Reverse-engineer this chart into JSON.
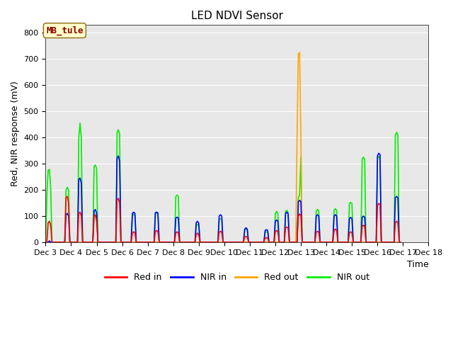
{
  "title": "LED NDVI Sensor",
  "ylabel": "Red, NIR response (mV)",
  "xlabel": "Time",
  "annotation": "MB_tule",
  "ylim": [
    0,
    830
  ],
  "plot_bgcolor": "#e8e8e8",
  "fig_bgcolor": "#ffffff",
  "colors": {
    "red_in": "#ff0000",
    "nir_in": "#0000ff",
    "red_out": "#ffa500",
    "nir_out": "#00ee00"
  },
  "x_ticks": [
    3,
    4,
    5,
    6,
    7,
    8,
    9,
    10,
    11,
    12,
    13,
    14,
    15,
    16,
    17,
    18
  ],
  "x_tick_labels": [
    "Dec 3",
    "Dec 4",
    "Dec 5",
    "Dec 6",
    "Dec 7",
    "Dec 8",
    "Dec 9",
    "Dec 10",
    "Dec 11",
    "Dec 12",
    "Dec 13",
    "Dec 14",
    "Dec 15",
    "Dec 16",
    "Dec 17",
    "Dec 18"
  ],
  "yticks": [
    0,
    100,
    200,
    300,
    400,
    500,
    600,
    700,
    800
  ],
  "red_in": [
    [
      3.0,
      0
    ],
    [
      3.05,
      0
    ],
    [
      3.1,
      75
    ],
    [
      3.15,
      80
    ],
    [
      3.2,
      65
    ],
    [
      3.25,
      0
    ],
    [
      3.3,
      0
    ],
    [
      3.7,
      0
    ],
    [
      3.75,
      0
    ],
    [
      3.8,
      170
    ],
    [
      3.85,
      175
    ],
    [
      3.9,
      150
    ],
    [
      3.95,
      0
    ],
    [
      4.0,
      0
    ],
    [
      4.2,
      0
    ],
    [
      4.25,
      0
    ],
    [
      4.3,
      110
    ],
    [
      4.35,
      115
    ],
    [
      4.4,
      100
    ],
    [
      4.45,
      0
    ],
    [
      4.5,
      0
    ],
    [
      4.8,
      0
    ],
    [
      4.85,
      0
    ],
    [
      4.9,
      100
    ],
    [
      4.95,
      105
    ],
    [
      5.0,
      80
    ],
    [
      5.05,
      0
    ],
    [
      5.1,
      0
    ],
    [
      5.7,
      0
    ],
    [
      5.75,
      0
    ],
    [
      5.8,
      160
    ],
    [
      5.85,
      168
    ],
    [
      5.9,
      150
    ],
    [
      5.95,
      0
    ],
    [
      6.0,
      0
    ],
    [
      6.3,
      0
    ],
    [
      6.35,
      0
    ],
    [
      6.4,
      35
    ],
    [
      6.45,
      40
    ],
    [
      6.5,
      35
    ],
    [
      6.55,
      0
    ],
    [
      6.6,
      0
    ],
    [
      7.2,
      0
    ],
    [
      7.25,
      0
    ],
    [
      7.3,
      40
    ],
    [
      7.35,
      45
    ],
    [
      7.4,
      40
    ],
    [
      7.45,
      0
    ],
    [
      7.5,
      0
    ],
    [
      8.0,
      0
    ],
    [
      8.05,
      0
    ],
    [
      8.1,
      35
    ],
    [
      8.15,
      40
    ],
    [
      8.2,
      35
    ],
    [
      8.25,
      0
    ],
    [
      8.3,
      0
    ],
    [
      8.8,
      0
    ],
    [
      8.85,
      0
    ],
    [
      8.9,
      30
    ],
    [
      8.95,
      35
    ],
    [
      9.0,
      28
    ],
    [
      9.05,
      0
    ],
    [
      9.1,
      0
    ],
    [
      9.7,
      0
    ],
    [
      9.75,
      0
    ],
    [
      9.8,
      38
    ],
    [
      9.85,
      42
    ],
    [
      9.9,
      38
    ],
    [
      9.95,
      0
    ],
    [
      10.0,
      0
    ],
    [
      10.7,
      0
    ],
    [
      10.75,
      0
    ],
    [
      10.8,
      20
    ],
    [
      10.85,
      22
    ],
    [
      10.9,
      20
    ],
    [
      10.95,
      0
    ],
    [
      11.0,
      0
    ],
    [
      11.5,
      0
    ],
    [
      11.55,
      0
    ],
    [
      11.6,
      15
    ],
    [
      11.65,
      18
    ],
    [
      11.7,
      15
    ],
    [
      11.75,
      0
    ],
    [
      11.8,
      0
    ],
    [
      11.9,
      0
    ],
    [
      11.95,
      0
    ],
    [
      12.0,
      40
    ],
    [
      12.05,
      45
    ],
    [
      12.1,
      40
    ],
    [
      12.15,
      0
    ],
    [
      12.2,
      0
    ],
    [
      12.3,
      0
    ],
    [
      12.35,
      0
    ],
    [
      12.4,
      55
    ],
    [
      12.45,
      58
    ],
    [
      12.5,
      55
    ],
    [
      12.55,
      0
    ],
    [
      12.6,
      0
    ],
    [
      12.8,
      0
    ],
    [
      12.85,
      0
    ],
    [
      12.9,
      100
    ],
    [
      12.95,
      108
    ],
    [
      13.0,
      100
    ],
    [
      13.05,
      0
    ],
    [
      13.1,
      0
    ],
    [
      13.5,
      0
    ],
    [
      13.55,
      0
    ],
    [
      13.6,
      38
    ],
    [
      13.65,
      42
    ],
    [
      13.7,
      38
    ],
    [
      13.75,
      0
    ],
    [
      13.8,
      0
    ],
    [
      14.2,
      0
    ],
    [
      14.25,
      0
    ],
    [
      14.3,
      45
    ],
    [
      14.35,
      50
    ],
    [
      14.4,
      45
    ],
    [
      14.45,
      0
    ],
    [
      14.5,
      0
    ],
    [
      14.8,
      0
    ],
    [
      14.85,
      0
    ],
    [
      14.9,
      35
    ],
    [
      14.95,
      40
    ],
    [
      15.0,
      35
    ],
    [
      15.05,
      0
    ],
    [
      15.1,
      0
    ],
    [
      15.3,
      0
    ],
    [
      15.35,
      0
    ],
    [
      15.4,
      60
    ],
    [
      15.45,
      65
    ],
    [
      15.5,
      60
    ],
    [
      15.55,
      0
    ],
    [
      15.6,
      0
    ],
    [
      15.9,
      0
    ],
    [
      15.95,
      0
    ],
    [
      16.0,
      140
    ],
    [
      16.05,
      148
    ],
    [
      16.1,
      145
    ],
    [
      16.15,
      0
    ],
    [
      16.2,
      0
    ],
    [
      16.6,
      0
    ],
    [
      16.65,
      0
    ],
    [
      16.7,
      75
    ],
    [
      16.75,
      80
    ],
    [
      16.8,
      75
    ],
    [
      16.85,
      0
    ],
    [
      16.9,
      0
    ]
  ],
  "nir_in": [
    [
      3.0,
      0
    ],
    [
      3.05,
      0
    ],
    [
      3.1,
      0
    ],
    [
      3.15,
      5
    ],
    [
      3.2,
      0
    ],
    [
      3.25,
      0
    ],
    [
      3.3,
      0
    ],
    [
      3.7,
      0
    ],
    [
      3.75,
      0
    ],
    [
      3.8,
      105
    ],
    [
      3.85,
      110
    ],
    [
      3.9,
      100
    ],
    [
      3.95,
      0
    ],
    [
      4.0,
      0
    ],
    [
      4.2,
      0
    ],
    [
      4.25,
      0
    ],
    [
      4.3,
      240
    ],
    [
      4.35,
      245
    ],
    [
      4.4,
      225
    ],
    [
      4.45,
      0
    ],
    [
      4.5,
      0
    ],
    [
      4.8,
      0
    ],
    [
      4.85,
      0
    ],
    [
      4.9,
      120
    ],
    [
      4.95,
      125
    ],
    [
      5.0,
      110
    ],
    [
      5.05,
      0
    ],
    [
      5.1,
      0
    ],
    [
      5.7,
      0
    ],
    [
      5.75,
      0
    ],
    [
      5.8,
      320
    ],
    [
      5.85,
      330
    ],
    [
      5.9,
      310
    ],
    [
      5.95,
      0
    ],
    [
      6.0,
      0
    ],
    [
      6.3,
      0
    ],
    [
      6.35,
      0
    ],
    [
      6.4,
      110
    ],
    [
      6.45,
      115
    ],
    [
      6.5,
      110
    ],
    [
      6.55,
      0
    ],
    [
      6.6,
      0
    ],
    [
      7.2,
      0
    ],
    [
      7.25,
      0
    ],
    [
      7.3,
      113
    ],
    [
      7.35,
      115
    ],
    [
      7.4,
      112
    ],
    [
      7.45,
      0
    ],
    [
      7.5,
      0
    ],
    [
      8.0,
      0
    ],
    [
      8.05,
      0
    ],
    [
      8.1,
      92
    ],
    [
      8.15,
      96
    ],
    [
      8.2,
      92
    ],
    [
      8.25,
      0
    ],
    [
      8.3,
      0
    ],
    [
      8.8,
      0
    ],
    [
      8.85,
      0
    ],
    [
      8.9,
      75
    ],
    [
      8.95,
      80
    ],
    [
      9.0,
      72
    ],
    [
      9.05,
      0
    ],
    [
      9.1,
      0
    ],
    [
      9.7,
      0
    ],
    [
      9.75,
      0
    ],
    [
      9.8,
      100
    ],
    [
      9.85,
      105
    ],
    [
      9.9,
      100
    ],
    [
      9.95,
      0
    ],
    [
      10.0,
      0
    ],
    [
      10.7,
      0
    ],
    [
      10.75,
      0
    ],
    [
      10.8,
      50
    ],
    [
      10.85,
      55
    ],
    [
      10.9,
      50
    ],
    [
      10.95,
      0
    ],
    [
      11.0,
      0
    ],
    [
      11.5,
      0
    ],
    [
      11.55,
      0
    ],
    [
      11.6,
      45
    ],
    [
      11.65,
      48
    ],
    [
      11.7,
      45
    ],
    [
      11.75,
      0
    ],
    [
      11.8,
      0
    ],
    [
      11.9,
      0
    ],
    [
      11.95,
      0
    ],
    [
      12.0,
      80
    ],
    [
      12.05,
      85
    ],
    [
      12.1,
      80
    ],
    [
      12.15,
      0
    ],
    [
      12.2,
      0
    ],
    [
      12.3,
      0
    ],
    [
      12.35,
      0
    ],
    [
      12.4,
      110
    ],
    [
      12.45,
      115
    ],
    [
      12.5,
      108
    ],
    [
      12.55,
      0
    ],
    [
      12.6,
      0
    ],
    [
      12.8,
      0
    ],
    [
      12.85,
      0
    ],
    [
      12.9,
      155
    ],
    [
      12.95,
      160
    ],
    [
      13.0,
      155
    ],
    [
      13.05,
      0
    ],
    [
      13.1,
      0
    ],
    [
      13.5,
      0
    ],
    [
      13.55,
      0
    ],
    [
      13.6,
      100
    ],
    [
      13.65,
      105
    ],
    [
      13.7,
      100
    ],
    [
      13.75,
      0
    ],
    [
      13.8,
      0
    ],
    [
      14.2,
      0
    ],
    [
      14.25,
      0
    ],
    [
      14.3,
      100
    ],
    [
      14.35,
      105
    ],
    [
      14.4,
      100
    ],
    [
      14.45,
      0
    ],
    [
      14.5,
      0
    ],
    [
      14.8,
      0
    ],
    [
      14.85,
      0
    ],
    [
      14.9,
      90
    ],
    [
      14.95,
      95
    ],
    [
      15.0,
      90
    ],
    [
      15.05,
      0
    ],
    [
      15.1,
      0
    ],
    [
      15.3,
      0
    ],
    [
      15.35,
      0
    ],
    [
      15.4,
      95
    ],
    [
      15.45,
      100
    ],
    [
      15.5,
      95
    ],
    [
      15.55,
      0
    ],
    [
      15.6,
      0
    ],
    [
      15.9,
      0
    ],
    [
      15.95,
      0
    ],
    [
      16.0,
      330
    ],
    [
      16.05,
      340
    ],
    [
      16.1,
      335
    ],
    [
      16.15,
      0
    ],
    [
      16.2,
      0
    ],
    [
      16.6,
      0
    ],
    [
      16.65,
      0
    ],
    [
      16.7,
      170
    ],
    [
      16.75,
      175
    ],
    [
      16.8,
      170
    ],
    [
      16.85,
      0
    ],
    [
      16.9,
      0
    ]
  ],
  "red_out": [
    [
      3.0,
      0
    ],
    [
      3.1,
      0
    ],
    [
      3.15,
      0
    ],
    [
      3.2,
      0
    ],
    [
      3.3,
      0
    ],
    [
      3.7,
      0
    ],
    [
      3.8,
      0
    ],
    [
      3.85,
      0
    ],
    [
      3.9,
      0
    ],
    [
      4.0,
      0
    ],
    [
      4.2,
      0
    ],
    [
      4.3,
      0
    ],
    [
      4.35,
      0
    ],
    [
      4.4,
      0
    ],
    [
      4.5,
      0
    ],
    [
      4.8,
      0
    ],
    [
      4.9,
      0
    ],
    [
      4.95,
      0
    ],
    [
      5.0,
      0
    ],
    [
      5.1,
      0
    ],
    [
      5.7,
      0
    ],
    [
      5.8,
      0
    ],
    [
      5.85,
      0
    ],
    [
      5.9,
      0
    ],
    [
      6.0,
      0
    ],
    [
      6.3,
      0
    ],
    [
      6.4,
      0
    ],
    [
      6.45,
      0
    ],
    [
      6.5,
      0
    ],
    [
      6.6,
      0
    ],
    [
      7.2,
      0
    ],
    [
      7.3,
      0
    ],
    [
      7.35,
      0
    ],
    [
      7.4,
      0
    ],
    [
      7.5,
      0
    ],
    [
      8.0,
      0
    ],
    [
      8.1,
      0
    ],
    [
      8.15,
      0
    ],
    [
      8.2,
      0
    ],
    [
      8.3,
      0
    ],
    [
      8.8,
      0
    ],
    [
      8.9,
      0
    ],
    [
      8.95,
      0
    ],
    [
      9.0,
      0
    ],
    [
      9.1,
      0
    ],
    [
      9.7,
      0
    ],
    [
      9.8,
      0
    ],
    [
      9.85,
      0
    ],
    [
      9.9,
      0
    ],
    [
      10.0,
      0
    ],
    [
      10.7,
      0
    ],
    [
      10.8,
      0
    ],
    [
      10.85,
      0
    ],
    [
      10.9,
      0
    ],
    [
      11.0,
      0
    ],
    [
      11.5,
      0
    ],
    [
      11.6,
      0
    ],
    [
      11.65,
      0
    ],
    [
      11.7,
      0
    ],
    [
      11.8,
      0
    ],
    [
      11.9,
      0
    ],
    [
      12.0,
      0
    ],
    [
      12.05,
      0
    ],
    [
      12.1,
      0
    ],
    [
      12.2,
      0
    ],
    [
      12.3,
      0
    ],
    [
      12.4,
      0
    ],
    [
      12.45,
      0
    ],
    [
      12.5,
      0
    ],
    [
      12.6,
      0
    ],
    [
      12.75,
      0
    ],
    [
      12.8,
      0
    ],
    [
      12.85,
      400
    ],
    [
      12.9,
      720
    ],
    [
      12.95,
      725
    ],
    [
      13.0,
      400
    ],
    [
      13.05,
      0
    ],
    [
      13.1,
      0
    ],
    [
      13.5,
      0
    ],
    [
      13.6,
      0
    ],
    [
      13.65,
      0
    ],
    [
      13.7,
      0
    ],
    [
      13.8,
      0
    ],
    [
      14.2,
      0
    ],
    [
      14.3,
      0
    ],
    [
      14.35,
      0
    ],
    [
      14.4,
      0
    ],
    [
      14.5,
      0
    ],
    [
      14.8,
      0
    ],
    [
      14.9,
      0
    ],
    [
      14.95,
      0
    ],
    [
      15.0,
      0
    ],
    [
      15.1,
      0
    ],
    [
      15.3,
      0
    ],
    [
      15.4,
      0
    ],
    [
      15.45,
      0
    ],
    [
      15.5,
      0
    ],
    [
      15.6,
      0
    ],
    [
      15.9,
      0
    ],
    [
      16.0,
      0
    ],
    [
      16.05,
      0
    ],
    [
      16.1,
      0
    ],
    [
      16.2,
      0
    ],
    [
      16.6,
      0
    ],
    [
      16.7,
      0
    ],
    [
      16.75,
      0
    ],
    [
      16.8,
      0
    ],
    [
      16.9,
      0
    ]
  ],
  "nir_out": [
    [
      3.0,
      0
    ],
    [
      3.05,
      180
    ],
    [
      3.1,
      275
    ],
    [
      3.15,
      278
    ],
    [
      3.2,
      210
    ],
    [
      3.25,
      0
    ],
    [
      3.3,
      0
    ],
    [
      3.7,
      0
    ],
    [
      3.75,
      0
    ],
    [
      3.8,
      200
    ],
    [
      3.85,
      210
    ],
    [
      3.9,
      200
    ],
    [
      3.95,
      0
    ],
    [
      4.0,
      0
    ],
    [
      4.2,
      0
    ],
    [
      4.25,
      0
    ],
    [
      4.3,
      400
    ],
    [
      4.35,
      455
    ],
    [
      4.4,
      400
    ],
    [
      4.45,
      0
    ],
    [
      4.5,
      0
    ],
    [
      4.8,
      0
    ],
    [
      4.85,
      0
    ],
    [
      4.9,
      290
    ],
    [
      4.95,
      295
    ],
    [
      5.0,
      280
    ],
    [
      5.05,
      0
    ],
    [
      5.1,
      0
    ],
    [
      5.7,
      0
    ],
    [
      5.75,
      0
    ],
    [
      5.8,
      420
    ],
    [
      5.85,
      430
    ],
    [
      5.9,
      415
    ],
    [
      5.95,
      0
    ],
    [
      6.0,
      0
    ],
    [
      6.3,
      0
    ],
    [
      6.35,
      0
    ],
    [
      6.4,
      100
    ],
    [
      6.45,
      108
    ],
    [
      6.5,
      100
    ],
    [
      6.55,
      0
    ],
    [
      6.6,
      0
    ],
    [
      7.2,
      0
    ],
    [
      7.25,
      0
    ],
    [
      7.3,
      110
    ],
    [
      7.35,
      112
    ],
    [
      7.4,
      108
    ],
    [
      7.45,
      0
    ],
    [
      7.5,
      0
    ],
    [
      8.0,
      0
    ],
    [
      8.05,
      0
    ],
    [
      8.1,
      175
    ],
    [
      8.15,
      180
    ],
    [
      8.2,
      175
    ],
    [
      8.25,
      0
    ],
    [
      8.3,
      0
    ],
    [
      8.8,
      0
    ],
    [
      8.85,
      0
    ],
    [
      8.9,
      63
    ],
    [
      8.95,
      68
    ],
    [
      9.0,
      62
    ],
    [
      9.05,
      0
    ],
    [
      9.1,
      0
    ],
    [
      9.7,
      0
    ],
    [
      9.75,
      0
    ],
    [
      9.8,
      88
    ],
    [
      9.85,
      90
    ],
    [
      9.9,
      88
    ],
    [
      9.95,
      0
    ],
    [
      10.0,
      0
    ],
    [
      10.7,
      0
    ],
    [
      10.75,
      0
    ],
    [
      10.8,
      48
    ],
    [
      10.85,
      50
    ],
    [
      10.9,
      48
    ],
    [
      10.95,
      0
    ],
    [
      11.0,
      0
    ],
    [
      11.5,
      0
    ],
    [
      11.55,
      0
    ],
    [
      11.6,
      38
    ],
    [
      11.65,
      40
    ],
    [
      11.7,
      38
    ],
    [
      11.75,
      0
    ],
    [
      11.8,
      0
    ],
    [
      11.9,
      0
    ],
    [
      11.95,
      0
    ],
    [
      12.0,
      110
    ],
    [
      12.05,
      118
    ],
    [
      12.1,
      110
    ],
    [
      12.15,
      0
    ],
    [
      12.2,
      0
    ],
    [
      12.3,
      0
    ],
    [
      12.35,
      0
    ],
    [
      12.4,
      118
    ],
    [
      12.45,
      122
    ],
    [
      12.5,
      115
    ],
    [
      12.55,
      0
    ],
    [
      12.6,
      0
    ],
    [
      12.8,
      0
    ],
    [
      12.85,
      0
    ],
    [
      12.9,
      170
    ],
    [
      12.95,
      180
    ],
    [
      13.0,
      325
    ],
    [
      13.05,
      0
    ],
    [
      13.1,
      0
    ],
    [
      13.5,
      0
    ],
    [
      13.55,
      0
    ],
    [
      13.6,
      120
    ],
    [
      13.65,
      125
    ],
    [
      13.7,
      120
    ],
    [
      13.75,
      0
    ],
    [
      13.8,
      0
    ],
    [
      14.2,
      0
    ],
    [
      14.25,
      0
    ],
    [
      14.3,
      122
    ],
    [
      14.35,
      128
    ],
    [
      14.4,
      122
    ],
    [
      14.45,
      0
    ],
    [
      14.5,
      0
    ],
    [
      14.8,
      0
    ],
    [
      14.85,
      0
    ],
    [
      14.9,
      148
    ],
    [
      14.95,
      152
    ],
    [
      15.0,
      148
    ],
    [
      15.05,
      0
    ],
    [
      15.1,
      0
    ],
    [
      15.3,
      0
    ],
    [
      15.35,
      0
    ],
    [
      15.4,
      318
    ],
    [
      15.45,
      325
    ],
    [
      15.5,
      315
    ],
    [
      15.55,
      0
    ],
    [
      15.6,
      0
    ],
    [
      15.9,
      0
    ],
    [
      15.95,
      0
    ],
    [
      16.0,
      320
    ],
    [
      16.05,
      328
    ],
    [
      16.1,
      315
    ],
    [
      16.15,
      0
    ],
    [
      16.2,
      0
    ],
    [
      16.6,
      0
    ],
    [
      16.65,
      0
    ],
    [
      16.7,
      410
    ],
    [
      16.75,
      420
    ],
    [
      16.8,
      410
    ],
    [
      16.85,
      0
    ],
    [
      16.9,
      0
    ]
  ],
  "legend_labels": [
    "Red in",
    "NIR in",
    "Red out",
    "NIR out"
  ],
  "annotation_facecolor": "#ffffcc",
  "annotation_edgecolor": "#8b6914",
  "annotation_textcolor": "#8b0000",
  "title_fontsize": 11,
  "axis_fontsize": 8,
  "label_fontsize": 9
}
